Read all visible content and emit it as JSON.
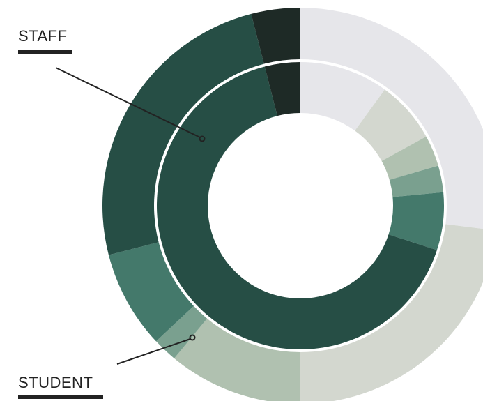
{
  "chart_data": {
    "type": "nested-donut",
    "colors": [
      "#e6e6ea",
      "#d3d7cf",
      "#b0c1b0",
      "#7aa08f",
      "#44796b",
      "#264e45",
      "#1e2a26"
    ],
    "series": [
      {
        "name": "STAFF",
        "values": [
          10,
          7,
          3.5,
          3,
          6.5,
          66,
          4
        ]
      },
      {
        "name": "STUDENT",
        "values": [
          27,
          23,
          11,
          2,
          8,
          25,
          4
        ]
      }
    ]
  }
}
